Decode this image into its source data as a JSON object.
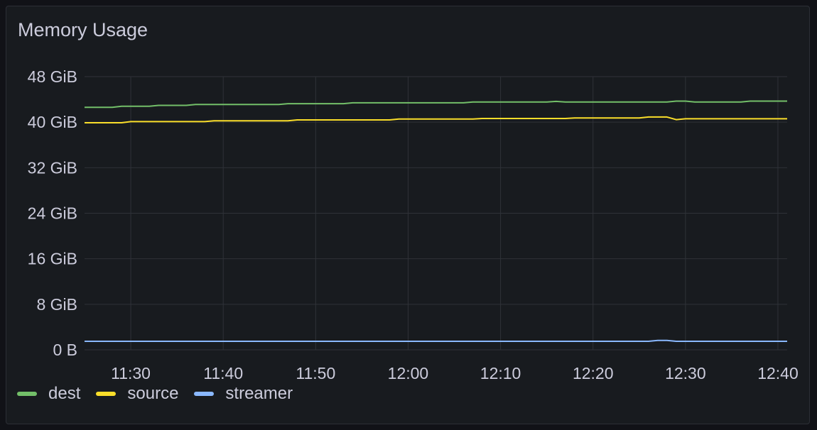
{
  "panel": {
    "title": "Memory Usage"
  },
  "chart_data": {
    "type": "line",
    "title": "Memory Usage",
    "y_unit": "GiB",
    "ylim": [
      0,
      48
    ],
    "y_ticks": [
      0,
      8,
      16,
      24,
      32,
      40,
      48
    ],
    "y_tick_labels": [
      "0 B",
      "8 GiB",
      "16 GiB",
      "24 GiB",
      "32 GiB",
      "40 GiB",
      "48 GiB"
    ],
    "x_unit": "minutes",
    "xlim": [
      "11:25",
      "12:41"
    ],
    "x_ticks": [
      "11:30",
      "11:40",
      "11:50",
      "12:00",
      "12:10",
      "12:20",
      "12:30",
      "12:40"
    ],
    "grid": true,
    "legend_position": "bottom-left",
    "series": [
      {
        "name": "dest",
        "color": "#73bf69",
        "points": [
          [
            "11:25",
            42.6
          ],
          [
            "11:28",
            42.6
          ],
          [
            "11:29",
            42.8
          ],
          [
            "11:32",
            42.8
          ],
          [
            "11:33",
            42.95
          ],
          [
            "11:36",
            42.95
          ],
          [
            "11:37",
            43.1
          ],
          [
            "11:46",
            43.1
          ],
          [
            "11:47",
            43.25
          ],
          [
            "11:53",
            43.25
          ],
          [
            "11:54",
            43.4
          ],
          [
            "12:06",
            43.4
          ],
          [
            "12:07",
            43.55
          ],
          [
            "12:15",
            43.55
          ],
          [
            "12:16",
            43.65
          ],
          [
            "12:17",
            43.55
          ],
          [
            "12:18",
            43.55
          ],
          [
            "12:28",
            43.55
          ],
          [
            "12:29",
            43.7
          ],
          [
            "12:30",
            43.7
          ],
          [
            "12:31",
            43.55
          ],
          [
            "12:36",
            43.55
          ],
          [
            "12:37",
            43.7
          ],
          [
            "12:41",
            43.7
          ]
        ]
      },
      {
        "name": "source",
        "color": "#fade2a",
        "points": [
          [
            "11:25",
            39.9
          ],
          [
            "11:29",
            39.9
          ],
          [
            "11:30",
            40.1
          ],
          [
            "11:38",
            40.1
          ],
          [
            "11:39",
            40.25
          ],
          [
            "11:47",
            40.25
          ],
          [
            "11:48",
            40.4
          ],
          [
            "11:58",
            40.4
          ],
          [
            "11:59",
            40.55
          ],
          [
            "12:07",
            40.55
          ],
          [
            "12:08",
            40.65
          ],
          [
            "12:17",
            40.65
          ],
          [
            "12:18",
            40.75
          ],
          [
            "12:25",
            40.75
          ],
          [
            "12:26",
            40.9
          ],
          [
            "12:28",
            40.9
          ],
          [
            "12:29",
            40.45
          ],
          [
            "12:30",
            40.6
          ],
          [
            "12:41",
            40.6
          ]
        ]
      },
      {
        "name": "streamer",
        "color": "#8ab8ff",
        "points": [
          [
            "11:25",
            1.5
          ],
          [
            "12:26",
            1.5
          ],
          [
            "12:27",
            1.65
          ],
          [
            "12:28",
            1.65
          ],
          [
            "12:29",
            1.5
          ],
          [
            "12:41",
            1.5
          ]
        ]
      }
    ]
  }
}
